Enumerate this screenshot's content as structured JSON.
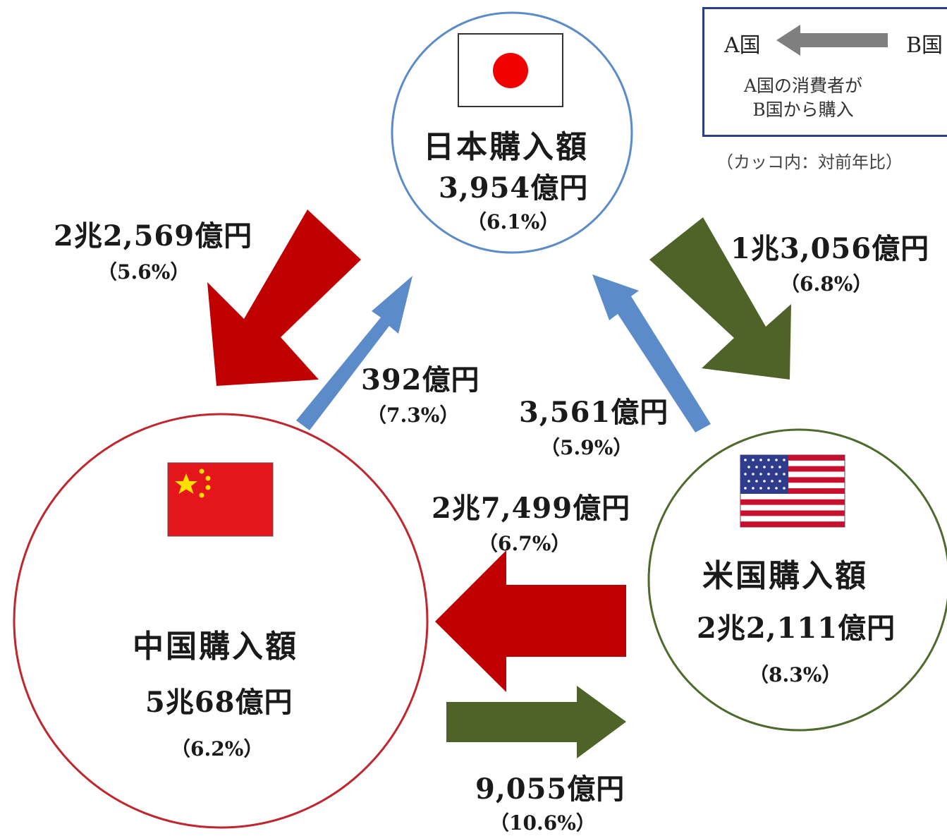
{
  "legend": {
    "country_a": "A国",
    "country_b": "B国",
    "line1": "A国の消費者が",
    "line2": "B国から購入",
    "note": "（カッコ内：対前年比）"
  },
  "nodes": {
    "japan": {
      "title": "日本購入額",
      "amount": "3,954億円",
      "pct": "（6.1%）",
      "color": "#5b8bc9"
    },
    "china": {
      "title": "中国購入額",
      "amount": "5兆68億円",
      "pct": "（6.2%）",
      "color": "#c0262d"
    },
    "usa": {
      "title": "米国購入額",
      "amount": "2兆2,111億円",
      "pct": "（8.3%）",
      "color": "#4e6a2c"
    }
  },
  "flows": {
    "china_from_japan": {
      "amount": "2兆2,569億円",
      "pct": "（5.6%）",
      "color": "#c00000"
    },
    "japan_from_china": {
      "amount": "392億円",
      "pct": "（7.3%）",
      "color": "#5b8bc9"
    },
    "usa_from_japan": {
      "amount": "1兆3,056億円",
      "pct": "（6.8%）",
      "color": "#4f6228"
    },
    "japan_from_usa": {
      "amount": "3,561億円",
      "pct": "（5.9%）",
      "color": "#5b8bc9"
    },
    "china_from_usa": {
      "amount": "2兆7,499億円",
      "pct": "（6.7%）",
      "color": "#c00000"
    },
    "usa_from_china": {
      "amount": "9,055億円",
      "pct": "（10.6%）",
      "color": "#4f6228"
    }
  }
}
